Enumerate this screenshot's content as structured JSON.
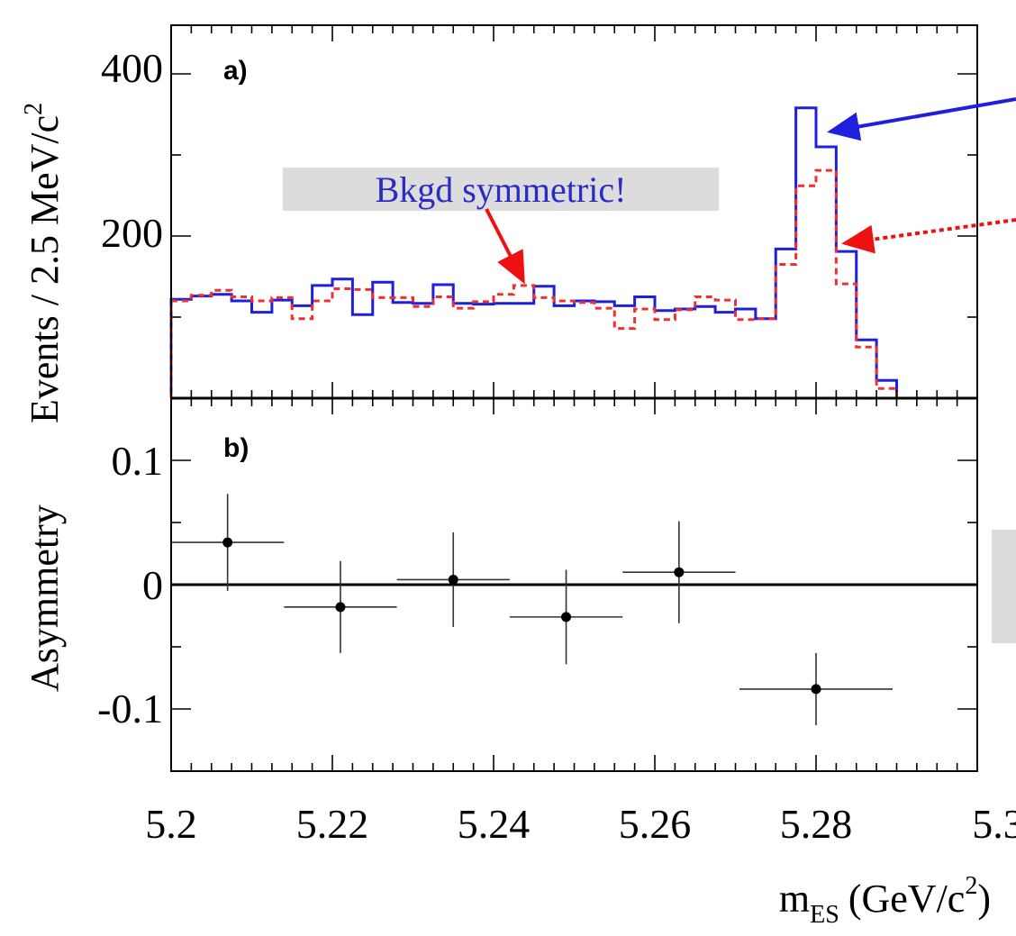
{
  "colors": {
    "series_solid": "#1f1fe0",
    "series_dashed": "#f03030",
    "annotation_text": "#2a2ac8",
    "annotation_box": "#dcdcdc",
    "arrow_blue": "#1f1fe0",
    "arrow_red": "#ee1111"
  },
  "chart_data": [
    {
      "type": "histogram",
      "panel_label": "a)",
      "ylabel": "Events / 2.5 MeV/c",
      "ylabel_sup": "2",
      "xlim": [
        5.2,
        5.3
      ],
      "ylim": [
        0,
        460
      ],
      "yticks": [
        200,
        400
      ],
      "bin_edges": [
        5.2,
        5.2025,
        5.205,
        5.2075,
        5.21,
        5.2125,
        5.215,
        5.2175,
        5.22,
        5.2225,
        5.225,
        5.2275,
        5.23,
        5.2325,
        5.235,
        5.2375,
        5.24,
        5.2425,
        5.245,
        5.2475,
        5.25,
        5.2525,
        5.255,
        5.2575,
        5.26,
        5.2625,
        5.265,
        5.2675,
        5.27,
        5.2725,
        5.275,
        5.2775,
        5.28,
        5.2825,
        5.285,
        5.2875,
        5.29
      ],
      "series": [
        {
          "style": "solid",
          "values": [
            122,
            126,
            128,
            120,
            106,
            121,
            114,
            139,
            147,
            103,
            143,
            118,
            117,
            140,
            117,
            116,
            117,
            117,
            138,
            114,
            120,
            119,
            114,
            125,
            108,
            110,
            113,
            106,
            110,
            98,
            184,
            358,
            310,
            181,
            72,
            22
          ]
        },
        {
          "style": "dashed",
          "values": [
            120,
            127,
            133,
            125,
            120,
            124,
            98,
            120,
            135,
            134,
            124,
            124,
            113,
            125,
            111,
            119,
            128,
            139,
            124,
            120,
            118,
            111,
            86,
            110,
            97,
            109,
            125,
            121,
            97,
            98,
            165,
            262,
            281,
            141,
            63,
            12
          ]
        }
      ]
    },
    {
      "type": "scatter",
      "panel_label": "b)",
      "ylabel": "Asymmetry",
      "xlabel": "m",
      "xlabel_sub": "ES",
      "xlabel_unit": "(GeV/c",
      "xlabel_sup": "2",
      "xlabel_close": ")",
      "xlim": [
        5.2,
        5.3
      ],
      "ylim": [
        -0.15,
        0.15
      ],
      "xticks": [
        "5.2",
        "5.22",
        "5.24",
        "5.26",
        "5.28",
        "5.3"
      ],
      "yticks": [
        "0.1",
        "0",
        "-0.1"
      ],
      "points": [
        {
          "x": 5.207,
          "y": 0.034,
          "xerr": 0.007,
          "yerr": 0.039
        },
        {
          "x": 5.221,
          "y": -0.018,
          "xerr": 0.007,
          "yerr": 0.037
        },
        {
          "x": 5.235,
          "y": 0.004,
          "xerr": 0.007,
          "yerr": 0.038
        },
        {
          "x": 5.249,
          "y": -0.026,
          "xerr": 0.007,
          "yerr": 0.038
        },
        {
          "x": 5.263,
          "y": 0.01,
          "xerr": 0.007,
          "yerr": 0.041
        },
        {
          "x": 5.28,
          "y": -0.084,
          "xerr": 0.0095,
          "yerr": 0.029
        }
      ]
    }
  ],
  "annotations": {
    "bkgd_text": "Bkgd symmetric!"
  }
}
